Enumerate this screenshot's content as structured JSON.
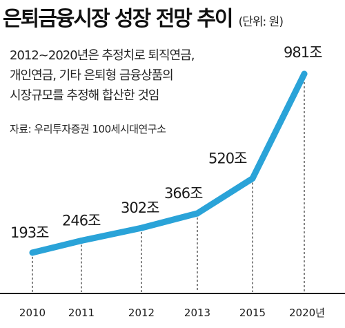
{
  "header": {
    "title": "은퇴금융시장 성장 전망 추이",
    "unit": "(단위: 원)"
  },
  "note": {
    "lines": [
      "2012~2020년은 추정치로 퇴직연금,",
      "개인연금, 기타 은퇴형 금융상품의",
      "시장규모를 추정해 합산한 것임"
    ],
    "source": "자료: 우리투자증권 100세시대연구소"
  },
  "colors": {
    "line": "#2aa3d8",
    "text": "#1a1a1a"
  },
  "chart_data": {
    "type": "line",
    "title": "은퇴금융시장 성장 전망 추이",
    "unit": "(단위: 원)",
    "categories": [
      "2010",
      "2011",
      "2012",
      "2013",
      "2015",
      "2020년"
    ],
    "values": [
      193,
      246,
      302,
      366,
      520,
      981
    ],
    "data_labels": [
      "193조",
      "246조",
      "302조",
      "366조",
      "520조",
      "981조"
    ],
    "grid": false,
    "dashed_drop_lines": true
  }
}
